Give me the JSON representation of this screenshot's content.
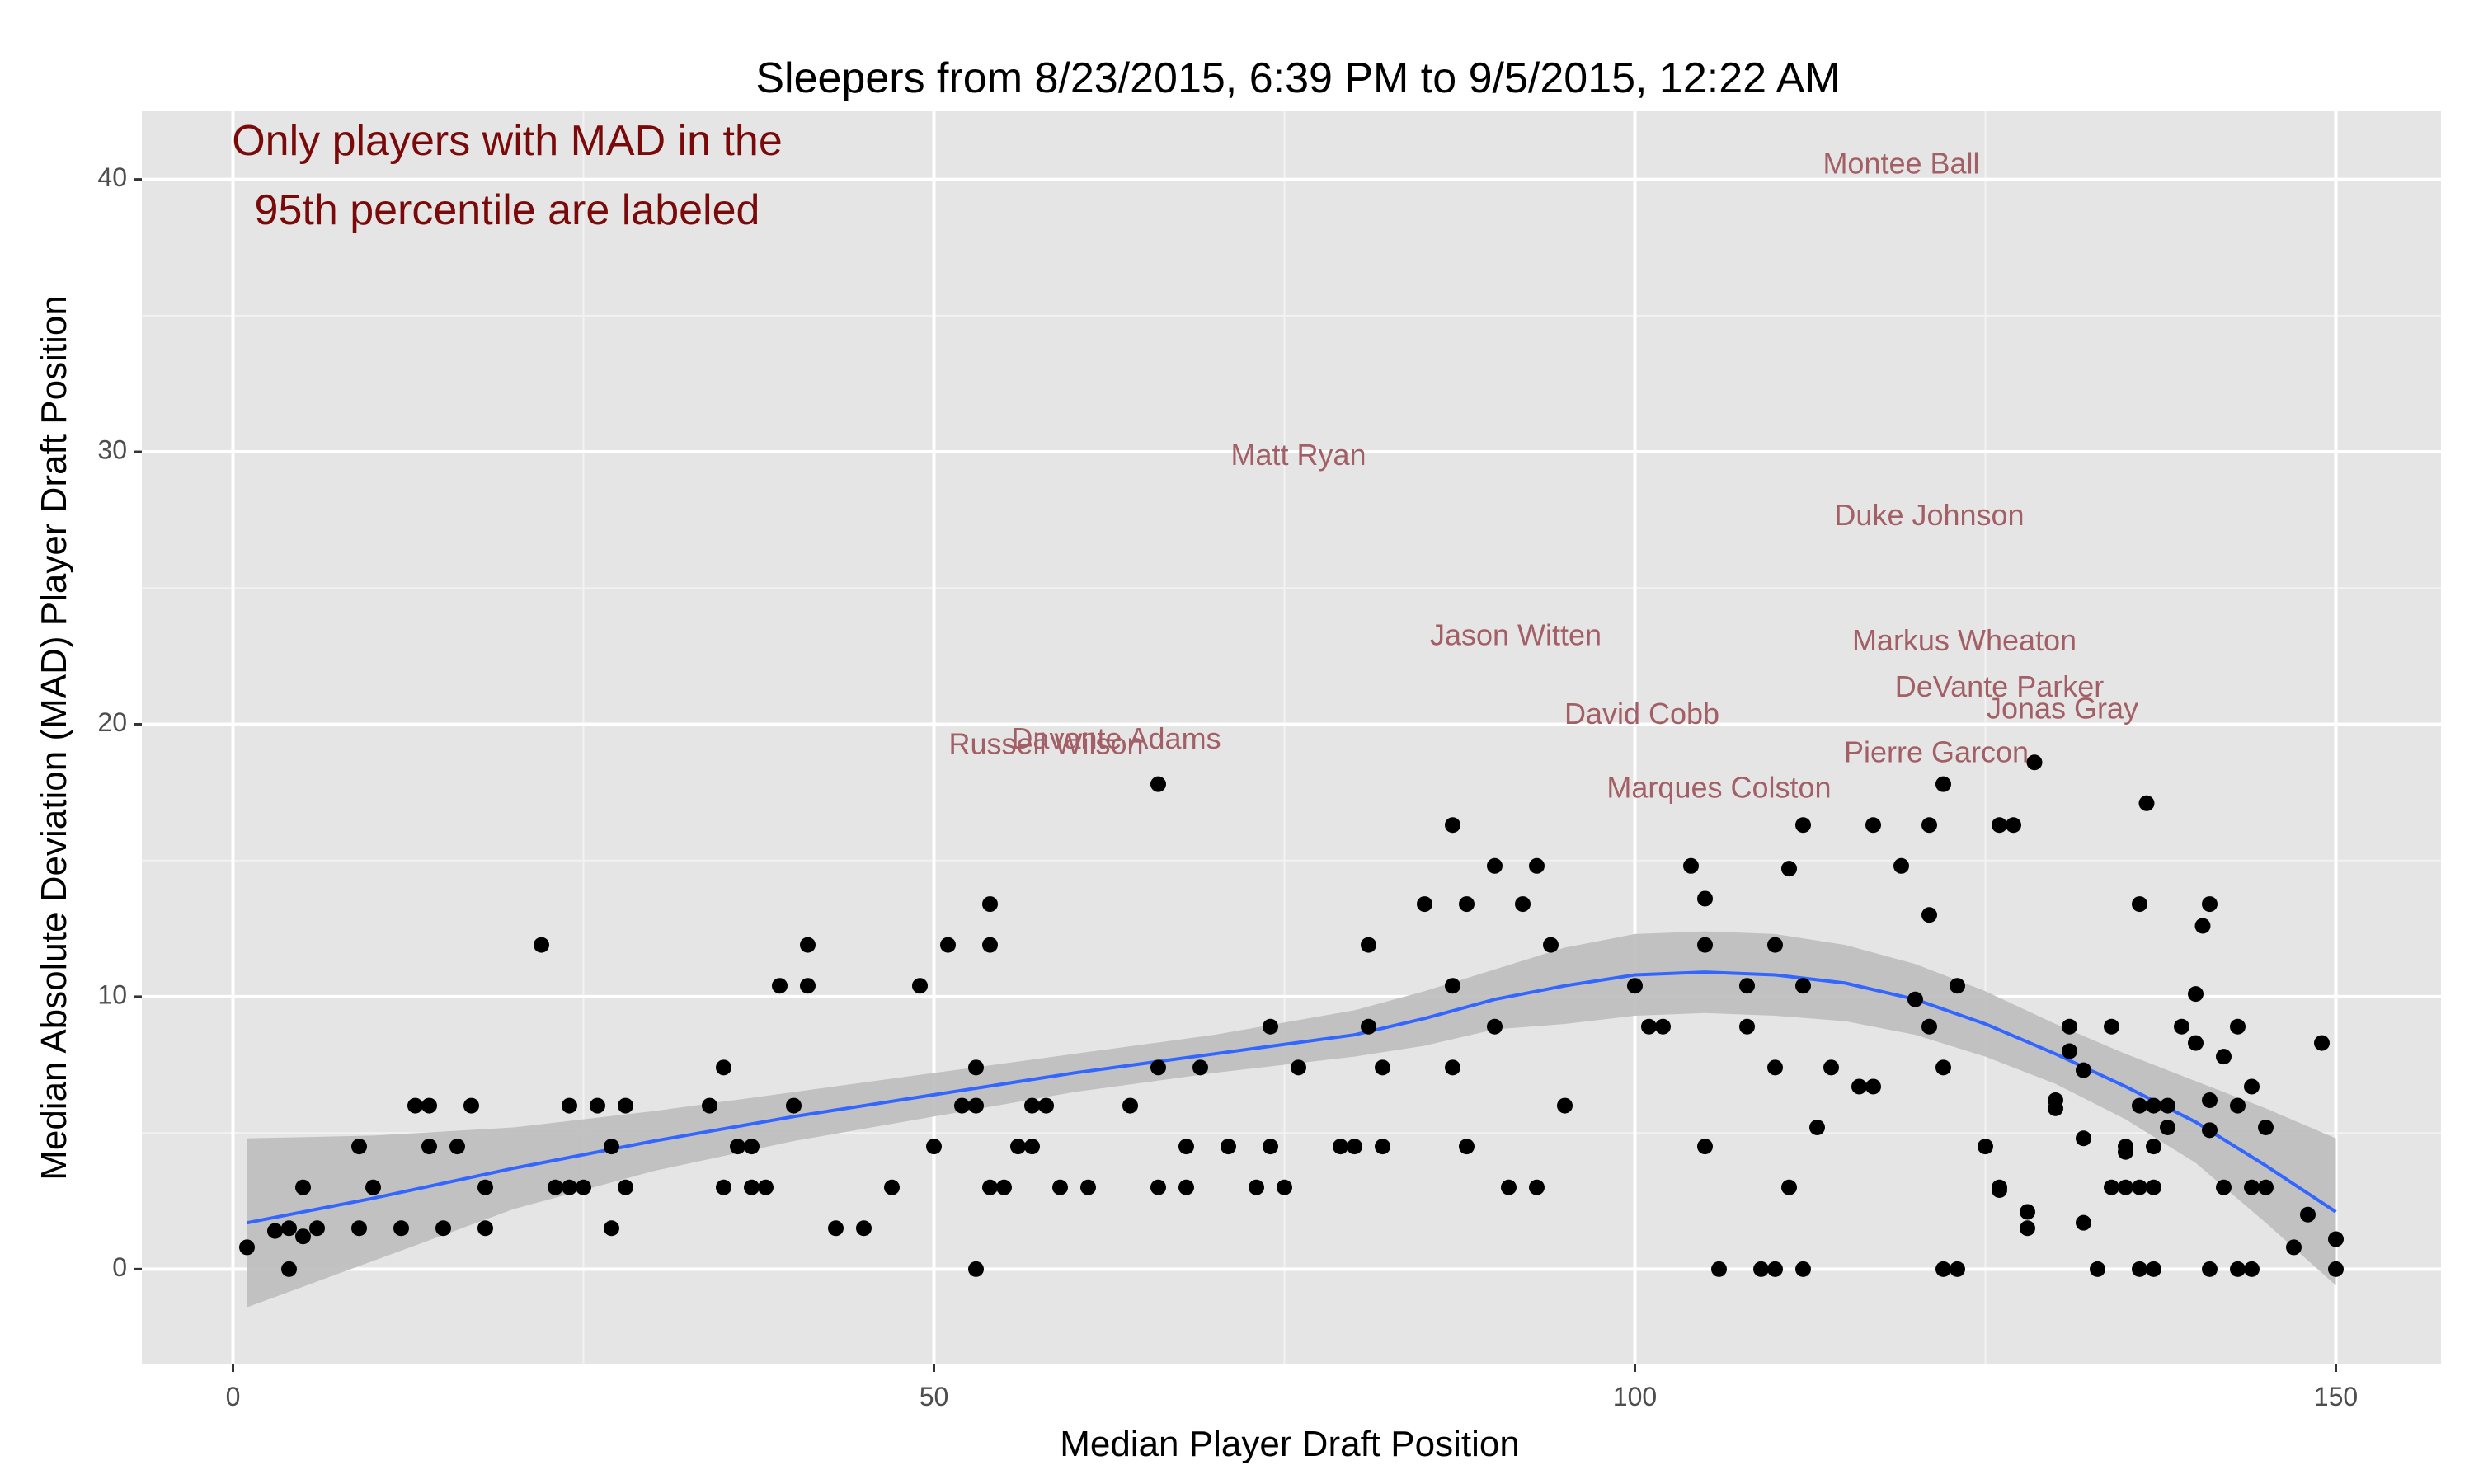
{
  "chart_data": {
    "type": "scatter",
    "title": "Sleepers from 8/23/2015, 6:39 PM to 9/5/2015, 12:22 AM",
    "xlabel": "Median Player Draft Position",
    "ylabel": "Median Absolute Deviation (MAD) Player Draft Position",
    "xlim": [
      -6.5,
      157.5
    ],
    "ylim": [
      -3.5,
      42.5
    ],
    "x_ticks": [
      0,
      50,
      100,
      150
    ],
    "y_ticks": [
      0,
      10,
      20,
      30,
      40
    ],
    "grid": true,
    "annotation": {
      "lines": [
        "Only players with MAD in the",
        "95th percentile are labeled"
      ]
    },
    "labeled_players": [
      {
        "name": "Montee Ball",
        "x": 119,
        "y": 40.5
      },
      {
        "name": "Matt Ryan",
        "x": 76,
        "y": 29.8
      },
      {
        "name": "Duke Johnson",
        "x": 121,
        "y": 27.6
      },
      {
        "name": "Jason Witten",
        "x": 91.5,
        "y": 23.2
      },
      {
        "name": "Markus Wheaton",
        "x": 123.5,
        "y": 23.0
      },
      {
        "name": "DeVante Parker",
        "x": 126,
        "y": 21.3
      },
      {
        "name": "Jonas Gray",
        "x": 130.5,
        "y": 20.5
      },
      {
        "name": "David Cobb",
        "x": 100.5,
        "y": 20.3
      },
      {
        "name": "Russell Wilson",
        "x": 58,
        "y": 19.2
      },
      {
        "name": "Davante Adams",
        "x": 63,
        "y": 19.4
      },
      {
        "name": "Pierre Garcon",
        "x": 121.5,
        "y": 18.9
      },
      {
        "name": "Marques Colston",
        "x": 106,
        "y": 17.6
      }
    ],
    "series": [
      {
        "type": "scatter",
        "points": [
          [
            1,
            0.8
          ],
          [
            3,
            1.4
          ],
          [
            4,
            1.5
          ],
          [
            4,
            0
          ],
          [
            5,
            1.2
          ],
          [
            5,
            3
          ],
          [
            6,
            1.5
          ],
          [
            9,
            1.5
          ],
          [
            9,
            4.5
          ],
          [
            10,
            3
          ],
          [
            12,
            1.5
          ],
          [
            13,
            6
          ],
          [
            14,
            6
          ],
          [
            14,
            4.5
          ],
          [
            15,
            1.5
          ],
          [
            16,
            4.5
          ],
          [
            17,
            6
          ],
          [
            18,
            3
          ],
          [
            18,
            1.5
          ],
          [
            22,
            11.9
          ],
          [
            23,
            3
          ],
          [
            24,
            3
          ],
          [
            24,
            6
          ],
          [
            25,
            3
          ],
          [
            26,
            6
          ],
          [
            27,
            4.5
          ],
          [
            27,
            1.5
          ],
          [
            28,
            3
          ],
          [
            28,
            6
          ],
          [
            34,
            6
          ],
          [
            35,
            7.4
          ],
          [
            35,
            3
          ],
          [
            36,
            4.5
          ],
          [
            37,
            4.5
          ],
          [
            37,
            3
          ],
          [
            38,
            3
          ],
          [
            39,
            10.4
          ],
          [
            40,
            6
          ],
          [
            41,
            11.9
          ],
          [
            41,
            10.4
          ],
          [
            43,
            1.5
          ],
          [
            45,
            1.5
          ],
          [
            47,
            3
          ],
          [
            49,
            10.4
          ],
          [
            50,
            4.5
          ],
          [
            51,
            11.9
          ],
          [
            52,
            6
          ],
          [
            53,
            6
          ],
          [
            53,
            7.4
          ],
          [
            53,
            0
          ],
          [
            54,
            11.9
          ],
          [
            54,
            13.4
          ],
          [
            54,
            3
          ],
          [
            55,
            3
          ],
          [
            56,
            4.5
          ],
          [
            57,
            6
          ],
          [
            57,
            4.5
          ],
          [
            58,
            6
          ],
          [
            59,
            3
          ],
          [
            61,
            3
          ],
          [
            64,
            6
          ],
          [
            66,
            17.8
          ],
          [
            66,
            7.4
          ],
          [
            66,
            3
          ],
          [
            68,
            3
          ],
          [
            68,
            4.5
          ],
          [
            69,
            7.4
          ],
          [
            71,
            4.5
          ],
          [
            73,
            3
          ],
          [
            74,
            8.9
          ],
          [
            74,
            4.5
          ],
          [
            75,
            3
          ],
          [
            76,
            7.4
          ],
          [
            79,
            4.5
          ],
          [
            80,
            4.5
          ],
          [
            81,
            11.9
          ],
          [
            81,
            8.9
          ],
          [
            82,
            7.4
          ],
          [
            82,
            4.5
          ],
          [
            85,
            13.4
          ],
          [
            87,
            16.3
          ],
          [
            87,
            10.4
          ],
          [
            87,
            7.4
          ],
          [
            88,
            13.4
          ],
          [
            88,
            4.5
          ],
          [
            90,
            14.8
          ],
          [
            90,
            8.9
          ],
          [
            91,
            3
          ],
          [
            92,
            13.4
          ],
          [
            93,
            14.8
          ],
          [
            93,
            3
          ],
          [
            94,
            11.9
          ],
          [
            95,
            6
          ],
          [
            100,
            10.4
          ],
          [
            101,
            8.9
          ],
          [
            102,
            8.9
          ],
          [
            104,
            14.8
          ],
          [
            105,
            13.6
          ],
          [
            105,
            11.9
          ],
          [
            105,
            4.5
          ],
          [
            106,
            0
          ],
          [
            108,
            10.4
          ],
          [
            108,
            8.9
          ],
          [
            109,
            0
          ],
          [
            110,
            11.9
          ],
          [
            110,
            7.4
          ],
          [
            110,
            0
          ],
          [
            111,
            14.7
          ],
          [
            111,
            3
          ],
          [
            112,
            16.3
          ],
          [
            112,
            10.4
          ],
          [
            112,
            0
          ],
          [
            113,
            5.2
          ],
          [
            114,
            7.4
          ],
          [
            116,
            6.7
          ],
          [
            117,
            6.7
          ],
          [
            117,
            16.3
          ],
          [
            119,
            14.8
          ],
          [
            120,
            9.9
          ],
          [
            121,
            16.3
          ],
          [
            121,
            13
          ],
          [
            121,
            8.9
          ],
          [
            122,
            17.8
          ],
          [
            122,
            7.4
          ],
          [
            122,
            0
          ],
          [
            123,
            0
          ],
          [
            123,
            10.4
          ],
          [
            125,
            4.5
          ],
          [
            126,
            3
          ],
          [
            126,
            2.9
          ],
          [
            126,
            16.3
          ],
          [
            127,
            16.3
          ],
          [
            128,
            2.1
          ],
          [
            128,
            1.5
          ],
          [
            128.5,
            18.6
          ],
          [
            130,
            6.2
          ],
          [
            130,
            5.9
          ],
          [
            131,
            8.9
          ],
          [
            131,
            8
          ],
          [
            132,
            7.3
          ],
          [
            132,
            4.8
          ],
          [
            132,
            1.7
          ],
          [
            133,
            0
          ],
          [
            134,
            8.9
          ],
          [
            134,
            3
          ],
          [
            135,
            4.5
          ],
          [
            135,
            4.3
          ],
          [
            135,
            3
          ],
          [
            136,
            6
          ],
          [
            136,
            3
          ],
          [
            136,
            13.4
          ],
          [
            136,
            0
          ],
          [
            136.5,
            17.1
          ],
          [
            137,
            6
          ],
          [
            137,
            4.5
          ],
          [
            137,
            3
          ],
          [
            137,
            0
          ],
          [
            138,
            6
          ],
          [
            138,
            5.2
          ],
          [
            139,
            8.9
          ],
          [
            140,
            10.1
          ],
          [
            140,
            8.3
          ],
          [
            140.5,
            12.6
          ],
          [
            141,
            13.4
          ],
          [
            141,
            6.2
          ],
          [
            141,
            5.1
          ],
          [
            141,
            0
          ],
          [
            142,
            7.8
          ],
          [
            142,
            3
          ],
          [
            143,
            8.9
          ],
          [
            143,
            6
          ],
          [
            143,
            0
          ],
          [
            144,
            6.7
          ],
          [
            144,
            3
          ],
          [
            144,
            0
          ],
          [
            145,
            5.2
          ],
          [
            145,
            3
          ],
          [
            147,
            0.8
          ],
          [
            148,
            2
          ],
          [
            149,
            8.3
          ],
          [
            150,
            1.1
          ],
          [
            150,
            0
          ]
        ]
      },
      {
        "type": "smooth",
        "points": [
          [
            1,
            1.7
          ],
          [
            10,
            2.6
          ],
          [
            20,
            3.7
          ],
          [
            30,
            4.7
          ],
          [
            40,
            5.6
          ],
          [
            50,
            6.4
          ],
          [
            60,
            7.2
          ],
          [
            70,
            7.9
          ],
          [
            80,
            8.6
          ],
          [
            85,
            9.2
          ],
          [
            90,
            9.9
          ],
          [
            95,
            10.4
          ],
          [
            100,
            10.8
          ],
          [
            105,
            10.9
          ],
          [
            110,
            10.8
          ],
          [
            115,
            10.5
          ],
          [
            120,
            9.9
          ],
          [
            125,
            9.0
          ],
          [
            130,
            7.9
          ],
          [
            135,
            6.7
          ],
          [
            140,
            5.4
          ],
          [
            145,
            3.8
          ],
          [
            150,
            2.1
          ]
        ],
        "band_upper": [
          [
            1,
            4.8
          ],
          [
            10,
            4.9
          ],
          [
            20,
            5.2
          ],
          [
            30,
            5.8
          ],
          [
            40,
            6.5
          ],
          [
            50,
            7.2
          ],
          [
            60,
            7.9
          ],
          [
            70,
            8.6
          ],
          [
            80,
            9.5
          ],
          [
            85,
            10.2
          ],
          [
            90,
            11.0
          ],
          [
            95,
            11.8
          ],
          [
            100,
            12.3
          ],
          [
            105,
            12.4
          ],
          [
            110,
            12.3
          ],
          [
            115,
            11.9
          ],
          [
            120,
            11.2
          ],
          [
            125,
            10.2
          ],
          [
            130,
            9.0
          ],
          [
            135,
            7.9
          ],
          [
            140,
            6.9
          ],
          [
            145,
            5.9
          ],
          [
            150,
            4.8
          ]
        ],
        "band_lower": [
          [
            1,
            -1.4
          ],
          [
            10,
            0.3
          ],
          [
            20,
            2.2
          ],
          [
            30,
            3.6
          ],
          [
            40,
            4.7
          ],
          [
            50,
            5.6
          ],
          [
            60,
            6.5
          ],
          [
            70,
            7.2
          ],
          [
            80,
            7.8
          ],
          [
            85,
            8.2
          ],
          [
            90,
            8.8
          ],
          [
            95,
            9.0
          ],
          [
            100,
            9.3
          ],
          [
            105,
            9.4
          ],
          [
            110,
            9.3
          ],
          [
            115,
            9.1
          ],
          [
            120,
            8.6
          ],
          [
            125,
            7.8
          ],
          [
            130,
            6.8
          ],
          [
            135,
            5.5
          ],
          [
            140,
            3.9
          ],
          [
            145,
            1.7
          ],
          [
            150,
            -0.6
          ]
        ],
        "color": "#3366ff",
        "band_color": "#bdbdbd"
      }
    ]
  }
}
